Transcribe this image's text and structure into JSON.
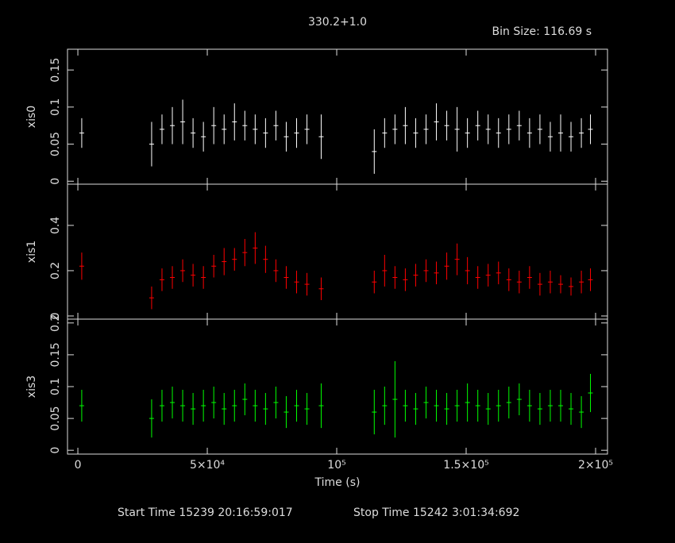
{
  "title": "330.2+1.0",
  "bin_size": "Bin Size: 116.69 s",
  "start_time": "Start Time 15239 20:16:59:017",
  "stop_time": "Stop Time 15242  3:01:34:692",
  "chart_data": [
    {
      "type": "errorbar",
      "ylabel": "xis0",
      "color": "#ffffff",
      "xlim": [
        -4000,
        204600
      ],
      "ylim": [
        -0.004,
        0.178
      ],
      "yticks": [
        0,
        0.05,
        0.1,
        0.15
      ],
      "x": [
        1500,
        28500,
        32500,
        36500,
        40500,
        44500,
        48500,
        52500,
        56500,
        60500,
        64500,
        68500,
        72500,
        76500,
        80500,
        84500,
        88500,
        94000,
        114500,
        118500,
        122500,
        126500,
        130500,
        134500,
        138500,
        142500,
        146500,
        150500,
        154500,
        158500,
        162500,
        166500,
        170500,
        174500,
        178500,
        182500,
        186500,
        190500,
        194500,
        198000
      ],
      "values": [
        0.065,
        0.05,
        0.07,
        0.075,
        0.08,
        0.065,
        0.06,
        0.075,
        0.07,
        0.08,
        0.075,
        0.07,
        0.065,
        0.075,
        0.06,
        0.065,
        0.07,
        0.06,
        0.04,
        0.065,
        0.07,
        0.075,
        0.065,
        0.07,
        0.08,
        0.075,
        0.07,
        0.065,
        0.075,
        0.07,
        0.065,
        0.07,
        0.075,
        0.065,
        0.07,
        0.06,
        0.065,
        0.06,
        0.065,
        0.07
      ],
      "errors": [
        0.02,
        0.03,
        0.02,
        0.025,
        0.03,
        0.02,
        0.02,
        0.025,
        0.02,
        0.025,
        0.02,
        0.02,
        0.02,
        0.02,
        0.02,
        0.02,
        0.02,
        0.03,
        0.03,
        0.02,
        0.02,
        0.025,
        0.02,
        0.02,
        0.025,
        0.02,
        0.03,
        0.02,
        0.02,
        0.02,
        0.02,
        0.02,
        0.02,
        0.02,
        0.02,
        0.02,
        0.025,
        0.02,
        0.02,
        0.02
      ]
    },
    {
      "type": "errorbar",
      "ylabel": "xis1",
      "color": "#ff0000",
      "xlim": [
        -4000,
        204600
      ],
      "ylim": [
        -0.014,
        0.582
      ],
      "yticks": [
        0,
        0.2,
        0.4
      ],
      "x": [
        1500,
        28500,
        32500,
        36500,
        40500,
        44500,
        48500,
        52500,
        56500,
        60500,
        64500,
        68500,
        72500,
        76500,
        80500,
        84500,
        88500,
        94000,
        114500,
        118500,
        122500,
        126500,
        130500,
        134500,
        138500,
        142500,
        146500,
        150500,
        154500,
        158500,
        162500,
        166500,
        170500,
        174500,
        178500,
        182500,
        186500,
        190500,
        194500,
        198000
      ],
      "values": [
        0.22,
        0.08,
        0.16,
        0.17,
        0.2,
        0.18,
        0.17,
        0.22,
        0.24,
        0.25,
        0.28,
        0.3,
        0.25,
        0.2,
        0.17,
        0.15,
        0.14,
        0.12,
        0.15,
        0.2,
        0.17,
        0.16,
        0.18,
        0.2,
        0.19,
        0.22,
        0.25,
        0.2,
        0.17,
        0.18,
        0.19,
        0.16,
        0.15,
        0.17,
        0.14,
        0.15,
        0.14,
        0.13,
        0.15,
        0.16
      ],
      "errors": [
        0.06,
        0.05,
        0.05,
        0.05,
        0.05,
        0.05,
        0.05,
        0.05,
        0.06,
        0.05,
        0.06,
        0.07,
        0.06,
        0.05,
        0.05,
        0.05,
        0.05,
        0.05,
        0.05,
        0.07,
        0.05,
        0.05,
        0.05,
        0.05,
        0.05,
        0.06,
        0.07,
        0.06,
        0.05,
        0.05,
        0.05,
        0.05,
        0.05,
        0.05,
        0.05,
        0.05,
        0.04,
        0.04,
        0.05,
        0.05
      ]
    },
    {
      "type": "errorbar",
      "ylabel": "xis3",
      "color": "#00ff00",
      "xlabel": "Time (s)",
      "xlim": [
        -4000,
        204600
      ],
      "ylim": [
        -0.006,
        0.206
      ],
      "yticks": [
        0,
        0.05,
        0.1,
        0.15,
        0.2
      ],
      "xticks": [
        0,
        {
          "value": 50000,
          "label": "5×10⁴"
        },
        {
          "value": 100000,
          "label": "10⁵"
        },
        {
          "value": 150000,
          "label": "1.5×10⁵"
        },
        {
          "value": 200000,
          "label": "2×10⁵"
        }
      ],
      "x": [
        1500,
        28500,
        32500,
        36500,
        40500,
        44500,
        48500,
        52500,
        56500,
        60500,
        64500,
        68500,
        72500,
        76500,
        80500,
        84500,
        88500,
        94000,
        114500,
        118500,
        122500,
        126500,
        130500,
        134500,
        138500,
        142500,
        146500,
        150500,
        154500,
        158500,
        162500,
        166500,
        170500,
        174500,
        178500,
        182500,
        186500,
        190500,
        194500,
        198000
      ],
      "values": [
        0.07,
        0.05,
        0.07,
        0.075,
        0.07,
        0.065,
        0.07,
        0.075,
        0.065,
        0.07,
        0.08,
        0.07,
        0.065,
        0.075,
        0.06,
        0.07,
        0.065,
        0.07,
        0.06,
        0.07,
        0.08,
        0.07,
        0.065,
        0.075,
        0.07,
        0.065,
        0.07,
        0.075,
        0.07,
        0.065,
        0.07,
        0.075,
        0.08,
        0.07,
        0.065,
        0.07,
        0.07,
        0.065,
        0.06,
        0.09
      ],
      "errors": [
        0.025,
        0.03,
        0.025,
        0.025,
        0.025,
        0.025,
        0.025,
        0.025,
        0.025,
        0.025,
        0.025,
        0.025,
        0.025,
        0.025,
        0.025,
        0.025,
        0.025,
        0.035,
        0.035,
        0.03,
        0.06,
        0.025,
        0.025,
        0.025,
        0.025,
        0.025,
        0.025,
        0.03,
        0.025,
        0.025,
        0.025,
        0.025,
        0.025,
        0.025,
        0.025,
        0.025,
        0.025,
        0.025,
        0.025,
        0.03
      ]
    }
  ]
}
